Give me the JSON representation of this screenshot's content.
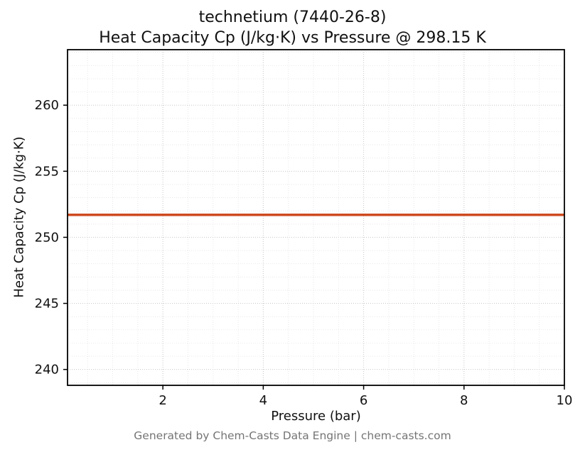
{
  "chart_data": {
    "type": "line",
    "title": "technetium (7440-26-8)",
    "subtitle": "Heat Capacity Cp (J/kg·K) vs Pressure @ 298.15 K",
    "xlabel": "Pressure (bar)",
    "ylabel": "Heat Capacity Cp (J/kg·K)",
    "footer": "Generated by Chem-Casts Data Engine | chem-casts.com",
    "xlim": [
      0.1,
      10
    ],
    "ylim": [
      238.8,
      264.2
    ],
    "x_ticks": [
      2,
      4,
      6,
      8,
      10
    ],
    "y_ticks": [
      240,
      245,
      250,
      255,
      260
    ],
    "x_minor_step": 0.5,
    "y_minor_step": 1,
    "grid": true,
    "legend": "none",
    "line_color": "#cd4a1e",
    "line_width": 3.5,
    "series": [
      {
        "name": "Cp",
        "x": [
          0.1,
          10
        ],
        "y": [
          251.7,
          251.7
        ]
      }
    ]
  }
}
